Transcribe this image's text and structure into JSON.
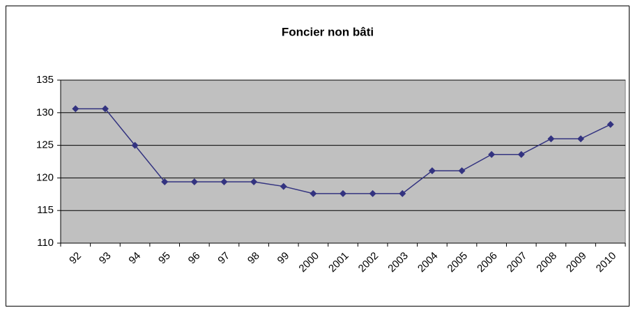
{
  "chart_data": {
    "type": "line",
    "title": "Foncier non bâti",
    "categories": [
      "92",
      "93",
      "94",
      "95",
      "96",
      "97",
      "98",
      "99",
      "2000",
      "2001",
      "2002",
      "2003",
      "2004",
      "2005",
      "2006",
      "2007",
      "2008",
      "2009",
      "2010"
    ],
    "values": [
      130.6,
      130.6,
      125,
      119.4,
      119.4,
      119.4,
      119.4,
      118.7,
      117.6,
      117.6,
      117.6,
      117.6,
      121.1,
      121.1,
      123.6,
      123.6,
      126,
      126,
      128.2
    ],
    "color": "#333380",
    "ylim": [
      110,
      135
    ],
    "yticks": [
      110,
      115,
      120,
      125,
      130,
      135
    ],
    "grid": true
  }
}
